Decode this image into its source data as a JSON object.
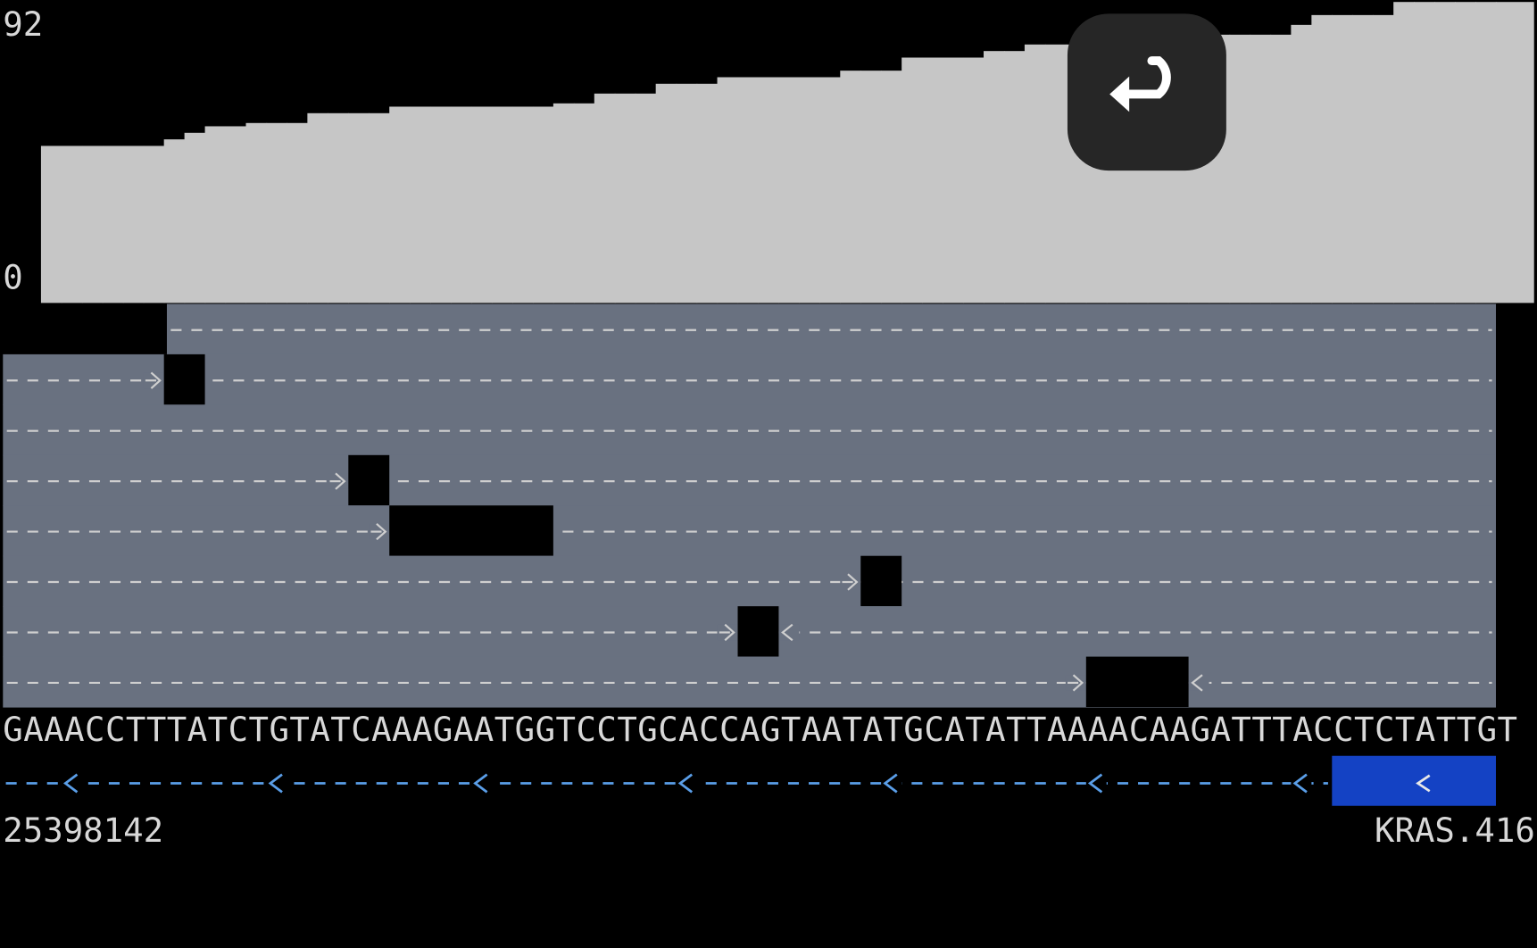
{
  "coverage": {
    "ylim": [
      0,
      92
    ],
    "ticks": [
      0,
      92
    ],
    "values": [
      null,
      null,
      48,
      48,
      48,
      48,
      48,
      48,
      50,
      52,
      54,
      54,
      55,
      55,
      55,
      58,
      58,
      58,
      58,
      60,
      60,
      60,
      60,
      60,
      60,
      60,
      60,
      61,
      61,
      64,
      64,
      64,
      67,
      67,
      67,
      69,
      69,
      69,
      69,
      69,
      69,
      71,
      71,
      71,
      75,
      75,
      75,
      75,
      77,
      77,
      79,
      79,
      79,
      81,
      81,
      81,
      81,
      81,
      81,
      82,
      82,
      82,
      82,
      85,
      88,
      88,
      88,
      88,
      92,
      92,
      92,
      92,
      92,
      92
    ]
  },
  "sequence": "GAAACCTTTATCTGTATCAAAGAATGGTCCTGCACCAGTAATATGCATATTAAAACAAGATTTACCTCTATTGT",
  "position": "25398142",
  "gene": "KRAS.416"
}
